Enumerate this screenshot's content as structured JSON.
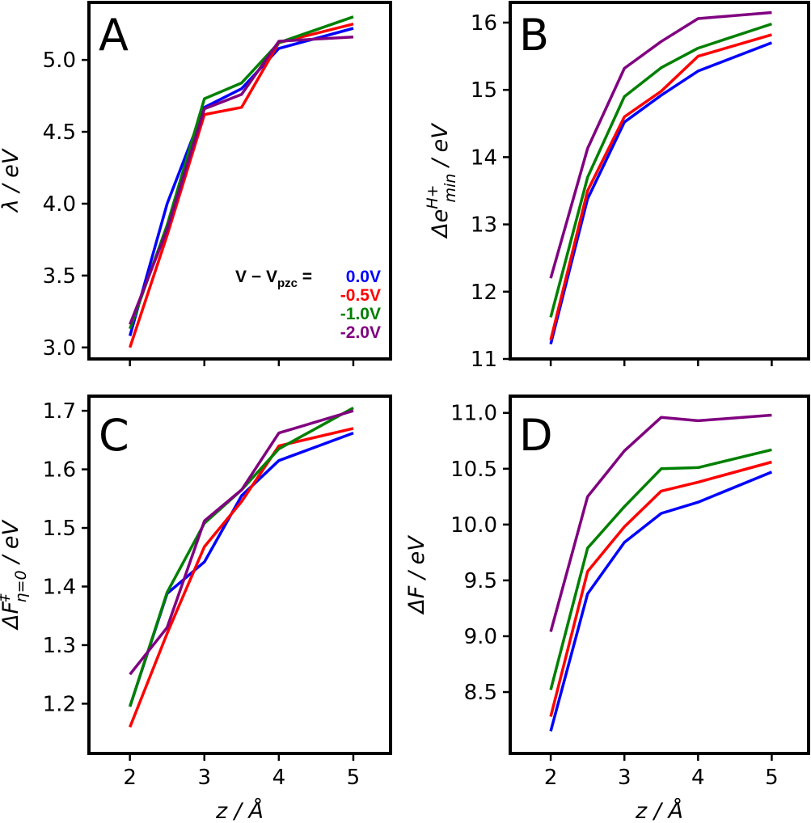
{
  "figure": {
    "legend": {
      "prefix": "V − V",
      "prefix_sub": "pzc",
      "equals": " =",
      "panel": "A"
    },
    "x_label_italic": "z",
    "x_label_unit": " / Å",
    "colors": {
      "0.0V": "#0000ff",
      "-0.5V": "#ff0000",
      "-1.0V": "#008000",
      "-2.0V": "#800080"
    }
  },
  "chart_data": [
    {
      "type": "line",
      "panel": "A",
      "ylabel": "λ / eV",
      "ylabel_parts": {
        "symbol": "λ",
        "unit": " / eV"
      },
      "x": [
        2,
        2.5,
        3,
        3.5,
        4,
        5
      ],
      "xticks": [
        2,
        3,
        4,
        5
      ],
      "xlim": [
        1.45,
        5.5
      ],
      "ylim": [
        2.92,
        5.4
      ],
      "yticks": [
        "3.0",
        "3.5",
        "4.0",
        "4.5",
        "5.0"
      ],
      "show_xticklabels": false,
      "series": [
        {
          "name": "0.0V",
          "values": [
            3.08,
            4.0,
            4.67,
            4.8,
            5.08,
            5.22
          ]
        },
        {
          "name": "-0.5V",
          "values": [
            3.0,
            3.78,
            4.62,
            4.67,
            5.12,
            5.25
          ]
        },
        {
          "name": "-1.0V",
          "values": [
            3.13,
            3.85,
            4.73,
            4.84,
            5.12,
            5.3
          ]
        },
        {
          "name": "-2.0V",
          "values": [
            3.16,
            3.82,
            4.66,
            4.76,
            5.13,
            5.16
          ]
        }
      ]
    },
    {
      "type": "line",
      "panel": "B",
      "ylabel": "Δe_min^H+ / eV",
      "ylabel_parts": {
        "symbol": "Δe",
        "sup": "H+",
        "sub": "min",
        "unit": " / eV"
      },
      "x": [
        2,
        2.5,
        3,
        3.5,
        4,
        5
      ],
      "xticks": [
        2,
        3,
        4,
        5
      ],
      "xlim": [
        1.45,
        5.5
      ],
      "ylim": [
        11.0,
        16.3
      ],
      "yticks": [
        "11",
        "12",
        "13",
        "14",
        "15",
        "16"
      ],
      "show_xticklabels": false,
      "series": [
        {
          "name": "0.0V",
          "values": [
            11.22,
            13.38,
            14.52,
            14.92,
            15.28,
            15.7
          ]
        },
        {
          "name": "-0.5V",
          "values": [
            11.28,
            13.5,
            14.6,
            14.98,
            15.5,
            15.82
          ]
        },
        {
          "name": "-1.0V",
          "values": [
            11.62,
            13.7,
            14.9,
            15.33,
            15.62,
            15.98
          ]
        },
        {
          "name": "-2.0V",
          "values": [
            12.2,
            14.13,
            15.32,
            15.72,
            16.06,
            16.15
          ]
        }
      ]
    },
    {
      "type": "line",
      "panel": "C",
      "ylabel": "ΔF‡_η=0 / eV",
      "ylabel_parts": {
        "symbol": "ΔF",
        "sup": "‡",
        "sub": "η=0",
        "unit": " / eV"
      },
      "x": [
        2,
        2.5,
        3,
        3.5,
        4,
        5
      ],
      "xticks": [
        2,
        3,
        4,
        5
      ],
      "xlim": [
        1.45,
        5.5
      ],
      "ylim": [
        1.115,
        1.725
      ],
      "yticks": [
        "1.2",
        "1.3",
        "1.4",
        "1.5",
        "1.6",
        "1.7"
      ],
      "show_xticklabels": true,
      "series": [
        {
          "name": "0.0V",
          "values": [
            1.195,
            1.388,
            1.442,
            1.555,
            1.615,
            1.662
          ]
        },
        {
          "name": "-0.5V",
          "values": [
            1.16,
            1.32,
            1.468,
            1.545,
            1.64,
            1.67
          ]
        },
        {
          "name": "-1.0V",
          "values": [
            1.195,
            1.39,
            1.508,
            1.565,
            1.635,
            1.705
          ]
        },
        {
          "name": "-2.0V",
          "values": [
            1.25,
            1.33,
            1.512,
            1.565,
            1.662,
            1.7
          ]
        }
      ]
    },
    {
      "type": "line",
      "panel": "D",
      "ylabel": "ΔF / eV",
      "ylabel_parts": {
        "symbol": "ΔF",
        "unit": " / eV"
      },
      "x": [
        2,
        2.5,
        3,
        3.5,
        4,
        5
      ],
      "xticks": [
        2,
        3,
        4,
        5
      ],
      "xlim": [
        1.45,
        5.5
      ],
      "ylim": [
        7.95,
        11.15
      ],
      "yticks": [
        "8.5",
        "9.0",
        "9.5",
        "10.0",
        "10.5",
        "11.0"
      ],
      "show_xticklabels": true,
      "series": [
        {
          "name": "0.0V",
          "values": [
            8.15,
            9.38,
            9.84,
            10.1,
            10.2,
            10.47
          ]
        },
        {
          "name": "-0.5V",
          "values": [
            8.28,
            9.58,
            9.98,
            10.3,
            10.38,
            10.56
          ]
        },
        {
          "name": "-1.0V",
          "values": [
            8.52,
            9.79,
            10.16,
            10.5,
            10.51,
            10.67
          ]
        },
        {
          "name": "-2.0V",
          "values": [
            9.04,
            10.25,
            10.66,
            10.96,
            10.93,
            10.98
          ]
        }
      ]
    }
  ]
}
